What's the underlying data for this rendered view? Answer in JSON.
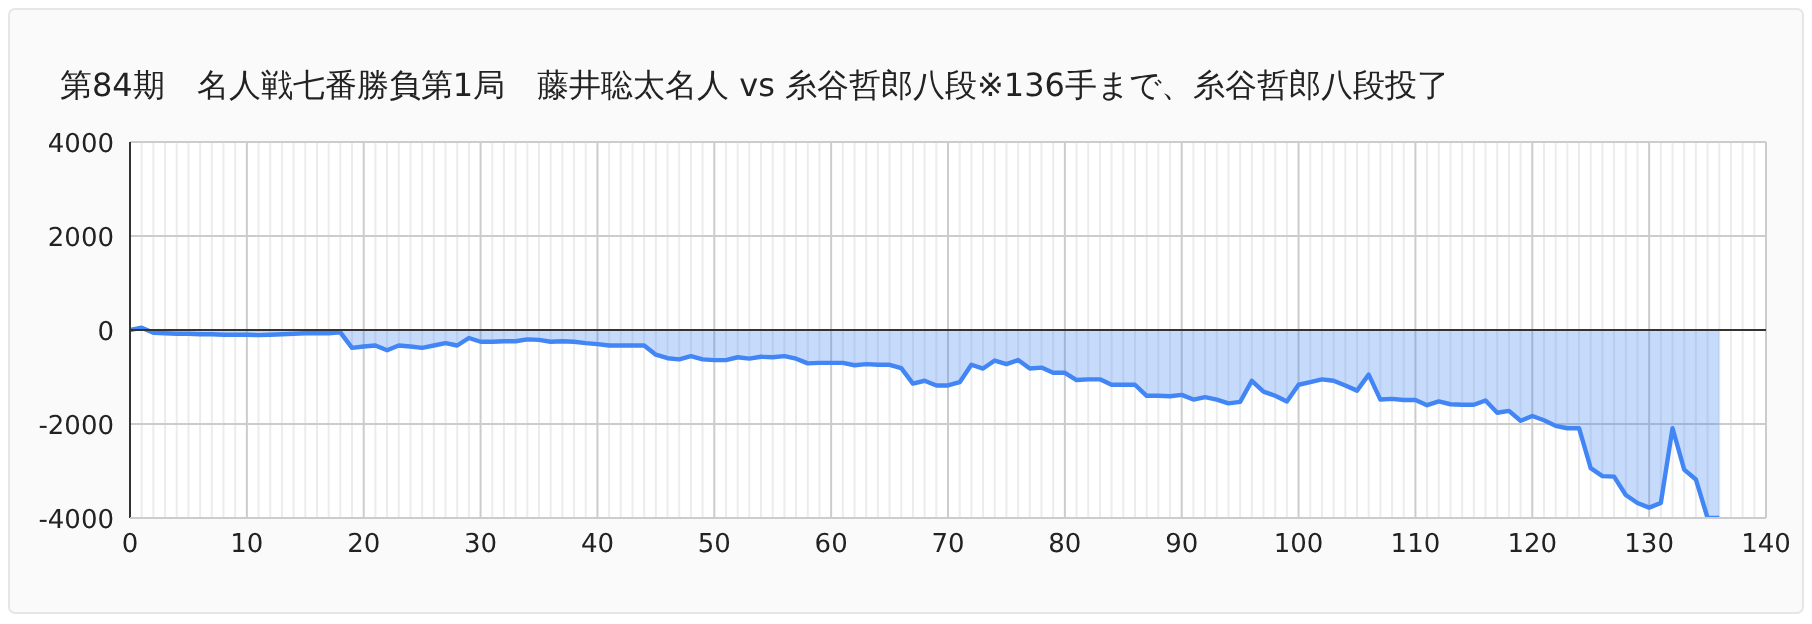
{
  "chart_data": {
    "type": "area",
    "title": "第84期　名人戦七番勝負第1局　藤井聡太名人 vs 糸谷哲郎八段※136手まで、糸谷哲郎八段投了",
    "x": [
      0,
      1,
      2,
      3,
      4,
      5,
      6,
      7,
      8,
      9,
      10,
      11,
      12,
      13,
      14,
      15,
      16,
      17,
      18,
      19,
      20,
      21,
      22,
      23,
      24,
      25,
      26,
      27,
      28,
      29,
      30,
      31,
      32,
      33,
      34,
      35,
      36,
      37,
      38,
      39,
      40,
      41,
      42,
      43,
      44,
      45,
      46,
      47,
      48,
      49,
      50,
      51,
      52,
      53,
      54,
      55,
      56,
      57,
      58,
      59,
      60,
      61,
      62,
      63,
      64,
      65,
      66,
      67,
      68,
      69,
      70,
      71,
      72,
      73,
      74,
      75,
      76,
      77,
      78,
      79,
      80,
      81,
      82,
      83,
      84,
      85,
      86,
      87,
      88,
      89,
      90,
      91,
      92,
      93,
      94,
      95,
      96,
      97,
      98,
      99,
      100,
      101,
      102,
      103,
      104,
      105,
      106,
      107,
      108,
      109,
      110,
      111,
      112,
      113,
      114,
      115,
      116,
      117,
      118,
      119,
      120,
      121,
      122,
      123,
      124,
      125,
      126,
      127,
      128,
      129,
      130,
      131,
      132,
      133,
      134,
      135,
      136
    ],
    "series": [
      {
        "color": "#4285f4",
        "values": [
          0,
          50,
          -60,
          -70,
          -80,
          -80,
          -90,
          -90,
          -100,
          -100,
          -100,
          -110,
          -100,
          -90,
          -80,
          -70,
          -70,
          -70,
          -50,
          -380,
          -350,
          -330,
          -430,
          -330,
          -350,
          -380,
          -330,
          -280,
          -330,
          -170,
          -250,
          -250,
          -240,
          -240,
          -200,
          -210,
          -250,
          -240,
          -250,
          -280,
          -300,
          -330,
          -330,
          -330,
          -330,
          -525,
          -600,
          -625,
          -555,
          -625,
          -640,
          -640,
          -580,
          -610,
          -570,
          -580,
          -555,
          -610,
          -710,
          -700,
          -700,
          -700,
          -750,
          -725,
          -740,
          -740,
          -810,
          -1140,
          -1080,
          -1180,
          -1180,
          -1110,
          -740,
          -820,
          -650,
          -725,
          -640,
          -820,
          -800,
          -910,
          -910,
          -1065,
          -1050,
          -1050,
          -1165,
          -1165,
          -1165,
          -1400,
          -1400,
          -1410,
          -1380,
          -1480,
          -1430,
          -1480,
          -1560,
          -1530,
          -1080,
          -1310,
          -1400,
          -1520,
          -1165,
          -1110,
          -1050,
          -1080,
          -1180,
          -1290,
          -950,
          -1480,
          -1465,
          -1490,
          -1490,
          -1600,
          -1520,
          -1580,
          -1590,
          -1590,
          -1500,
          -1760,
          -1720,
          -1930,
          -1830,
          -1920,
          -2040,
          -2090,
          -2090,
          -2940,
          -3110,
          -3120,
          -3510,
          -3680,
          -3780,
          -3680,
          -2090,
          -2970,
          -3180,
          -4000,
          -4000
        ]
      }
    ],
    "xlim": [
      0,
      140
    ],
    "xticks": [
      0,
      10,
      20,
      30,
      40,
      50,
      60,
      70,
      80,
      90,
      100,
      110,
      120,
      130,
      140
    ],
    "ylim": [
      -4000,
      4000
    ],
    "yticks": [
      -4000,
      -2000,
      0,
      2000,
      4000
    ],
    "grid": true,
    "ref_lines": [
      {
        "axis": "y",
        "value": 0,
        "color": "#333333"
      }
    ]
  }
}
